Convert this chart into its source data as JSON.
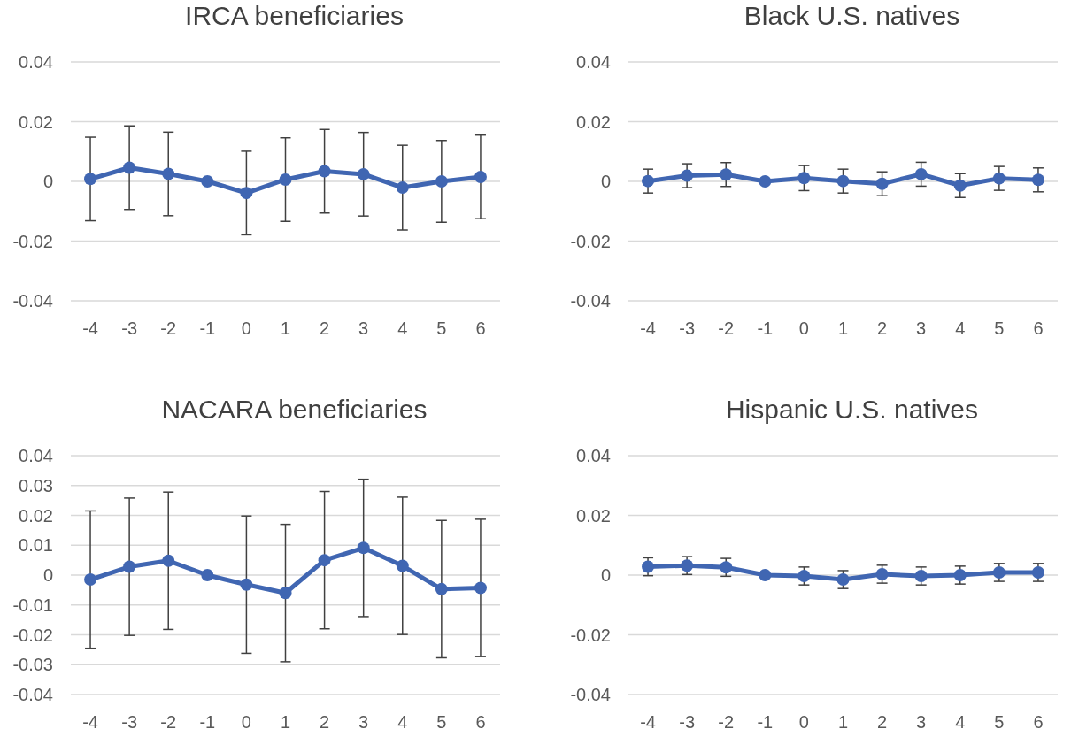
{
  "chart_data": [
    {
      "type": "line",
      "title": "IRCA beneficiaries",
      "categories": [
        "-4",
        "-3",
        "-2",
        "-1",
        "0",
        "1",
        "2",
        "3",
        "4",
        "5",
        "6"
      ],
      "ylim": [
        -0.04,
        0.04
      ],
      "yticks": [
        -0.04,
        -0.02,
        0,
        0.02,
        0.04
      ],
      "grid": "y",
      "marker": "circle",
      "series": [
        {
          "color": "#4066b2",
          "values": [
            0.0008,
            0.0046,
            0.0025,
            0,
            -0.0039,
            0.0006,
            0.0034,
            0.0024,
            -0.0021,
            0,
            0.0015
          ],
          "errors": [
            0.014,
            0.014,
            0.014,
            null,
            0.014,
            0.014,
            0.014,
            0.014,
            0.0142,
            0.0137,
            0.014
          ]
        }
      ]
    },
    {
      "type": "line",
      "title": "Black U.S. natives",
      "categories": [
        "-4",
        "-3",
        "-2",
        "-1",
        "0",
        "1",
        "2",
        "3",
        "4",
        "5",
        "6"
      ],
      "ylim": [
        -0.04,
        0.04
      ],
      "yticks": [
        -0.04,
        -0.02,
        0,
        0.02,
        0.04
      ],
      "grid": "y",
      "marker": "circle",
      "series": [
        {
          "color": "#4066b2",
          "values": [
            0.0001,
            0.0019,
            0.0023,
            0,
            0.0011,
            0.0001,
            -0.0008,
            0.0024,
            -0.0014,
            0.001,
            0.0005
          ],
          "errors": [
            0.004,
            0.004,
            0.004,
            null,
            0.0042,
            0.004,
            0.004,
            0.004,
            0.004,
            0.004,
            0.004
          ]
        }
      ]
    },
    {
      "type": "line",
      "title": "NACARA beneficiaries",
      "categories": [
        "-4",
        "-3",
        "-2",
        "-1",
        "0",
        "1",
        "2",
        "3",
        "4",
        "5",
        "6"
      ],
      "ylim": [
        -0.04,
        0.04
      ],
      "yticks": [
        -0.04,
        -0.03,
        -0.02,
        -0.01,
        0,
        0.01,
        0.02,
        0.03,
        0.04
      ],
      "grid": "y",
      "marker": "circle",
      "series": [
        {
          "color": "#4066b2",
          "values": [
            -0.0015,
            0.0028,
            0.0048,
            0,
            -0.0032,
            -0.006,
            0.005,
            0.0091,
            0.0031,
            -0.0047,
            -0.0043
          ],
          "errors": [
            0.023,
            0.023,
            0.023,
            null,
            0.023,
            0.023,
            0.023,
            0.023,
            0.023,
            0.023,
            0.023
          ]
        }
      ]
    },
    {
      "type": "line",
      "title": "Hispanic U.S. natives",
      "categories": [
        "-4",
        "-3",
        "-2",
        "-1",
        "0",
        "1",
        "2",
        "3",
        "4",
        "5",
        "6"
      ],
      "ylim": [
        -0.04,
        0.04
      ],
      "yticks": [
        -0.04,
        -0.02,
        0,
        0.02,
        0.04
      ],
      "grid": "y",
      "marker": "circle",
      "series": [
        {
          "color": "#4066b2",
          "values": [
            0.0028,
            0.0032,
            0.0026,
            0,
            -0.0003,
            -0.0015,
            0.0003,
            -0.0003,
            0,
            0.0009,
            0.0009
          ],
          "errors": [
            0.003,
            0.003,
            0.003,
            null,
            0.003,
            0.003,
            0.003,
            0.003,
            0.003,
            0.003,
            0.003
          ]
        }
      ]
    }
  ]
}
